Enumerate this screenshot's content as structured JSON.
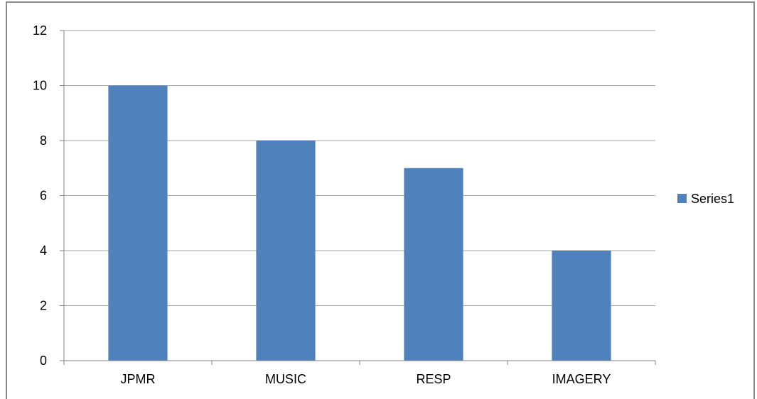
{
  "chart_data": {
    "type": "bar",
    "categories": [
      "JPMR",
      "MUSIC",
      "RESP",
      "IMAGERY"
    ],
    "series": [
      {
        "name": "Series1",
        "values": [
          10,
          8,
          7,
          4
        ]
      }
    ],
    "title": "",
    "xlabel": "",
    "ylabel": "",
    "ylim": [
      0,
      12
    ],
    "yticks": [
      0,
      2,
      4,
      6,
      8,
      10,
      12
    ],
    "grid": true,
    "legend_position": "right",
    "colors": {
      "series": "#4f81bd",
      "grid": "#a6a6a6",
      "axis": "#868686"
    }
  }
}
